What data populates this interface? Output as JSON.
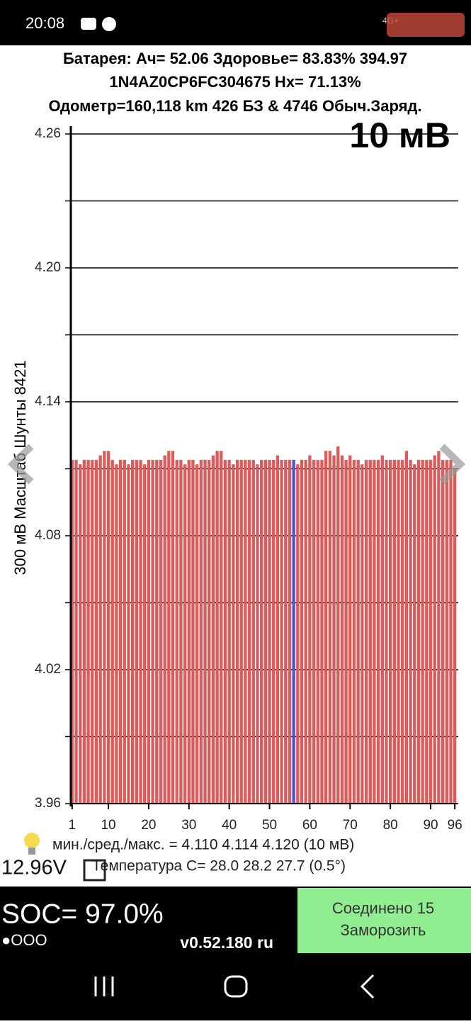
{
  "status_bar": {
    "time": "20:08",
    "network": "4G+"
  },
  "header": {
    "line1": "Батарея: Ач= 52.06 Здоровье= 83.83% 394.97",
    "line2": "1N4AZ0CP6FC304675   Hx= 71.13%",
    "line3": "Одометр=160,118 km 426 БЗ & 4746 Обыч.Заряд."
  },
  "chart_data": {
    "type": "bar",
    "scale_label": "10 мВ",
    "ylabel": "300 мВ Масштаб   Шунты 8421",
    "x": [
      1,
      2,
      3,
      4,
      5,
      6,
      7,
      8,
      9,
      10,
      11,
      12,
      13,
      14,
      15,
      16,
      17,
      18,
      19,
      20,
      21,
      22,
      23,
      24,
      25,
      26,
      27,
      28,
      29,
      30,
      31,
      32,
      33,
      34,
      35,
      36,
      37,
      38,
      39,
      40,
      41,
      42,
      43,
      44,
      45,
      46,
      47,
      48,
      49,
      50,
      51,
      52,
      53,
      54,
      55,
      56,
      57,
      58,
      59,
      60,
      61,
      62,
      63,
      64,
      65,
      66,
      67,
      68,
      69,
      70,
      71,
      72,
      73,
      74,
      75,
      76,
      77,
      78,
      79,
      80,
      81,
      82,
      83,
      84,
      85,
      86,
      87,
      88,
      89,
      90,
      91,
      92,
      93,
      94,
      95,
      96
    ],
    "values": [
      4.114,
      4.114,
      4.112,
      4.114,
      4.114,
      4.114,
      4.114,
      4.116,
      4.118,
      4.118,
      4.114,
      4.112,
      4.114,
      4.114,
      4.112,
      4.114,
      4.114,
      4.114,
      4.112,
      4.114,
      4.114,
      4.114,
      4.114,
      4.116,
      4.118,
      4.118,
      4.114,
      4.114,
      4.112,
      4.114,
      4.114,
      4.112,
      4.114,
      4.114,
      4.114,
      4.116,
      4.118,
      4.118,
      4.114,
      4.114,
      4.112,
      4.114,
      4.114,
      4.114,
      4.114,
      4.114,
      4.112,
      4.114,
      4.114,
      4.114,
      4.114,
      4.116,
      4.114,
      4.114,
      4.114,
      4.114,
      4.112,
      4.114,
      4.114,
      4.116,
      4.114,
      4.114,
      4.114,
      4.118,
      4.118,
      4.116,
      4.12,
      4.116,
      4.114,
      4.116,
      4.114,
      4.114,
      4.112,
      4.114,
      4.114,
      4.114,
      4.114,
      4.116,
      4.114,
      4.114,
      4.114,
      4.114,
      4.114,
      4.118,
      4.114,
      4.112,
      4.114,
      4.114,
      4.114,
      4.114,
      4.116,
      4.118,
      4.114,
      4.114,
      4.114,
      4.11
    ],
    "color": "#dc5b5b",
    "highlight": {
      "x": 56,
      "color": "#4a55d8"
    },
    "xlim": [
      0.5,
      96.5
    ],
    "xticks": [
      1,
      10,
      20,
      30,
      40,
      50,
      60,
      70,
      80,
      90,
      96
    ],
    "ylim": [
      3.96,
      4.26
    ],
    "yticks": [
      4.26,
      {
        "value": 4.2,
        "label": "4.20"
      },
      4.14,
      4.08,
      4.02,
      3.96
    ],
    "minor_yticks": [
      4.23,
      4.17,
      4.11,
      4.05,
      3.99
    ],
    "grid": true
  },
  "footer": {
    "stats": "мин./сред./макс. = 4.110 4.114 4.120  (10 мВ)",
    "voltage": "12.96V",
    "temperature": "Температура C= 28.0  28.2  27.7  (0.5°)",
    "soc": "SOC= 97.0%",
    "dots": "●OOO",
    "version": "v0.52.180 ru",
    "button_line1": "Соединено 15",
    "button_line2": "Заморозить"
  }
}
